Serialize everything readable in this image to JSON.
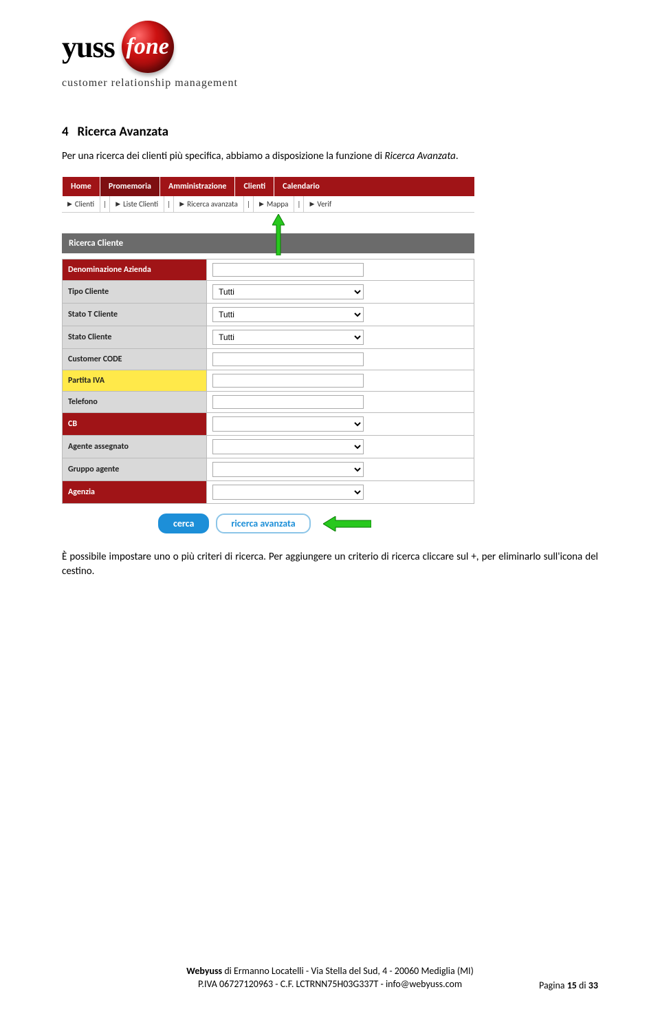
{
  "logo": {
    "wordmark_part1": "yuss",
    "wordmark_sphere": "fone",
    "tagline": "customer relationship management"
  },
  "heading": {
    "number": "4",
    "title": "Ricerca Avanzata"
  },
  "intro": {
    "pre": "Per una ricerca dei clienti più specifica, abbiamo a disposizione la funzione di ",
    "italic": "Ricerca Avanzata",
    "post": "."
  },
  "mainnav": {
    "items": [
      "Home",
      "Promemoria",
      "Amministrazione",
      "Clienti",
      "Calendario"
    ],
    "selected_index": 1
  },
  "subnav": {
    "items": [
      "Clienti",
      "Liste Clienti",
      "Ricerca avanzata",
      "Mappa",
      "Verif"
    ]
  },
  "panel_title": "Ricerca Cliente",
  "form_rows": [
    {
      "label": "Denominazione Azienda",
      "style": "red",
      "control": "text",
      "value": ""
    },
    {
      "label": "Tipo Cliente",
      "style": "default",
      "control": "select",
      "value": "Tutti"
    },
    {
      "label": "Stato T Cliente",
      "style": "default",
      "control": "select",
      "value": "Tutti"
    },
    {
      "label": "Stato Cliente",
      "style": "default",
      "control": "select",
      "value": "Tutti"
    },
    {
      "label": "Customer CODE",
      "style": "default",
      "control": "text",
      "value": ""
    },
    {
      "label": "Partita IVA",
      "style": "yellow",
      "control": "text",
      "value": ""
    },
    {
      "label": "Telefono",
      "style": "default",
      "control": "text",
      "value": ""
    },
    {
      "label": "CB",
      "style": "red",
      "control": "select",
      "value": ""
    },
    {
      "label": "Agente assegnato",
      "style": "default",
      "control": "select",
      "value": ""
    },
    {
      "label": "Gruppo agente",
      "style": "default",
      "control": "select",
      "value": ""
    },
    {
      "label": "Agenzia",
      "style": "red",
      "control": "select",
      "value": ""
    }
  ],
  "buttons": {
    "primary": "cerca",
    "secondary": "ricerca avanzata"
  },
  "para2": "È possibile impostare uno o più criteri di ricerca. Per aggiungere un criterio di ricerca cliccare sul +, per eliminarlo sull'icona del cestino.",
  "footer": {
    "line1_pre": "Webyuss",
    "line1_rest": " di Ermanno Locatelli - Via Stella del Sud, 4 - 20060 Mediglia (MI)",
    "line2": "P.IVA 06727120963 - C.F. LCTRNN75H03G337T - info@webyuss.com"
  },
  "page": {
    "prefix": "Pagina ",
    "current": "15",
    "sep": " di ",
    "total": "33"
  },
  "colors": {
    "brand_red": "#a01417",
    "yellow": "#ffe94a",
    "grey_label": "#d9d9d9",
    "panel_grey": "#6b6b6b",
    "btn_blue": "#1d8fd8",
    "arrow_green": "#28c81e",
    "arrow_stroke": "#0a7a05"
  }
}
